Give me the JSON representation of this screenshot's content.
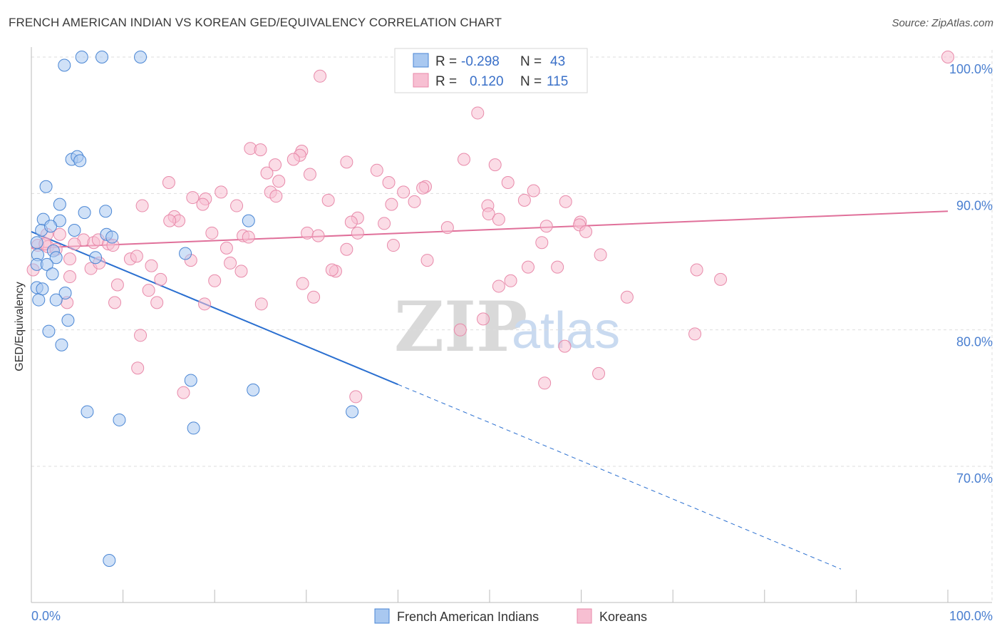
{
  "header": {
    "title": "FRENCH AMERICAN INDIAN VS KOREAN GED/EQUIVALENCY CORRELATION CHART",
    "source": "Source: ZipAtlas.com"
  },
  "watermark": {
    "zip": "ZIP",
    "atlas": "atlas"
  },
  "legend_box": {
    "rows": [
      {
        "r_label": "R =",
        "r_value": "-0.298",
        "n_label": "N =",
        "n_value": "43"
      },
      {
        "r_label": "R =",
        "r_value": "0.120",
        "n_label": "N =",
        "n_value": "115"
      }
    ]
  },
  "bottom_legend": {
    "items": [
      {
        "label": "French American Indians"
      },
      {
        "label": "Koreans"
      }
    ]
  },
  "colors": {
    "blue_fill": "#a9c8f0",
    "blue_stroke": "#4a86d4",
    "blue_line": "#2a6fd0",
    "pink_fill": "#f7bfd2",
    "pink_stroke": "#e88aaa",
    "pink_line": "#e0709a",
    "grid": "#dddddd",
    "tick_text": "#4a7fd0"
  },
  "chart_data": {
    "type": "scatter",
    "title": "FRENCH AMERICAN INDIAN VS KOREAN GED/EQUIVALENCY CORRELATION CHART",
    "xlabel": "",
    "ylabel": "GED/Equivalency",
    "xlim": [
      0,
      105
    ],
    "ylim": [
      60.2,
      101.5
    ],
    "x_tick_labels": [
      {
        "value": 0,
        "label": "0.0%"
      },
      {
        "value": 100,
        "label": "100.0%"
      }
    ],
    "y_tick_labels": [
      {
        "value": 100,
        "label": "100.0%"
      },
      {
        "value": 90,
        "label": "90.0%"
      },
      {
        "value": 80,
        "label": "80.0%"
      },
      {
        "value": 70,
        "label": "70.0%"
      }
    ],
    "grid": true,
    "series": [
      {
        "name": "French American Indians",
        "r": -0.298,
        "n": 43,
        "trend": {
          "x0": 0,
          "y0": 87.2,
          "x1": 100,
          "y1": 59.2,
          "solid_until_x": 40
        },
        "points": [
          [
            3.6,
            99.4
          ],
          [
            5.5,
            100
          ],
          [
            7.7,
            100
          ],
          [
            11.9,
            100
          ],
          [
            4.4,
            92.5
          ],
          [
            5.0,
            92.7
          ],
          [
            5.3,
            92.4
          ],
          [
            1.6,
            90.5
          ],
          [
            3.1,
            89.2
          ],
          [
            5.8,
            88.6
          ],
          [
            8.1,
            88.7
          ],
          [
            1.3,
            88.1
          ],
          [
            3.1,
            88.0
          ],
          [
            1.1,
            87.3
          ],
          [
            2.1,
            87.6
          ],
          [
            4.7,
            87.3
          ],
          [
            8.2,
            87.0
          ],
          [
            8.8,
            86.8
          ],
          [
            0.6,
            86.4
          ],
          [
            2.4,
            85.8
          ],
          [
            0.7,
            85.5
          ],
          [
            2.7,
            85.3
          ],
          [
            7.0,
            85.3
          ],
          [
            0.6,
            84.8
          ],
          [
            1.7,
            84.8
          ],
          [
            2.3,
            84.1
          ],
          [
            16.8,
            85.6
          ],
          [
            23.7,
            88.0
          ],
          [
            0.6,
            83.1
          ],
          [
            1.2,
            83.0
          ],
          [
            3.7,
            82.7
          ],
          [
            0.8,
            82.2
          ],
          [
            2.7,
            82.2
          ],
          [
            4.0,
            80.7
          ],
          [
            1.9,
            79.9
          ],
          [
            3.3,
            78.9
          ],
          [
            17.4,
            76.3
          ],
          [
            24.2,
            75.6
          ],
          [
            6.1,
            74.0
          ],
          [
            9.6,
            73.4
          ],
          [
            35.0,
            74.0
          ],
          [
            17.7,
            72.8
          ],
          [
            8.5,
            63.1
          ]
        ]
      },
      {
        "name": "Koreans",
        "r": 0.12,
        "n": 115,
        "trend": {
          "x0": 0,
          "y0": 86.0,
          "x1": 100,
          "y1": 88.7
        },
        "points": [
          [
            41.0,
            100
          ],
          [
            100,
            100
          ],
          [
            31.5,
            98.6
          ],
          [
            48.7,
            95.9
          ],
          [
            23.9,
            93.3
          ],
          [
            25.0,
            93.2
          ],
          [
            29.5,
            93.1
          ],
          [
            29.3,
            92.8
          ],
          [
            28.6,
            92.5
          ],
          [
            34.4,
            92.3
          ],
          [
            26.6,
            92.1
          ],
          [
            47.2,
            92.5
          ],
          [
            50.6,
            92.1
          ],
          [
            25.7,
            91.5
          ],
          [
            30.4,
            91.4
          ],
          [
            37.7,
            91.7
          ],
          [
            39.0,
            90.8
          ],
          [
            15.0,
            90.8
          ],
          [
            27.0,
            90.9
          ],
          [
            43.0,
            90.5
          ],
          [
            42.7,
            90.4
          ],
          [
            40.6,
            90.1
          ],
          [
            26.1,
            90.1
          ],
          [
            20.7,
            90.1
          ],
          [
            52.0,
            90.8
          ],
          [
            54.8,
            90.2
          ],
          [
            17.6,
            89.7
          ],
          [
            26.7,
            89.8
          ],
          [
            19.0,
            89.6
          ],
          [
            32.4,
            89.5
          ],
          [
            41.8,
            89.4
          ],
          [
            58.3,
            89.4
          ],
          [
            49.8,
            89.1
          ],
          [
            12.1,
            89.1
          ],
          [
            18.7,
            89.2
          ],
          [
            22.4,
            89.1
          ],
          [
            39.3,
            89.2
          ],
          [
            53.8,
            89.5
          ],
          [
            15.6,
            88.3
          ],
          [
            16.1,
            88.0
          ],
          [
            15.1,
            88.0
          ],
          [
            35.6,
            88.2
          ],
          [
            34.9,
            87.9
          ],
          [
            38.5,
            87.8
          ],
          [
            49.9,
            88.5
          ],
          [
            51.0,
            88.1
          ],
          [
            59.9,
            87.9
          ],
          [
            56.2,
            87.6
          ],
          [
            59.8,
            87.7
          ],
          [
            45.4,
            87.5
          ],
          [
            30.1,
            87.1
          ],
          [
            35.6,
            87.1
          ],
          [
            60.5,
            87.2
          ],
          [
            19.7,
            87.1
          ],
          [
            31.3,
            86.9
          ],
          [
            23.1,
            86.9
          ],
          [
            23.7,
            86.8
          ],
          [
            1.7,
            87.0
          ],
          [
            3.1,
            87.0
          ],
          [
            1.8,
            86.1
          ],
          [
            5.7,
            86.6
          ],
          [
            6.8,
            86.4
          ],
          [
            7.3,
            86.6
          ],
          [
            8.4,
            86.3
          ],
          [
            8.9,
            86.2
          ],
          [
            4.7,
            86.3
          ],
          [
            0.7,
            86.2
          ],
          [
            1.5,
            86.3
          ],
          [
            2.7,
            85.9
          ],
          [
            21.3,
            86.0
          ],
          [
            34.4,
            85.9
          ],
          [
            39.5,
            86.2
          ],
          [
            55.7,
            86.4
          ],
          [
            62.1,
            85.5
          ],
          [
            10.8,
            85.2
          ],
          [
            11.5,
            85.4
          ],
          [
            4.2,
            85.2
          ],
          [
            17.4,
            85.1
          ],
          [
            21.7,
            84.9
          ],
          [
            33.2,
            84.3
          ],
          [
            32.8,
            84.4
          ],
          [
            43.2,
            85.1
          ],
          [
            54.2,
            84.6
          ],
          [
            57.4,
            84.6
          ],
          [
            13.1,
            84.7
          ],
          [
            6.5,
            84.5
          ],
          [
            7.4,
            84.9
          ],
          [
            22.9,
            84.3
          ],
          [
            0.2,
            84.4
          ],
          [
            4.2,
            83.9
          ],
          [
            14.1,
            83.7
          ],
          [
            20.0,
            83.6
          ],
          [
            29.6,
            83.4
          ],
          [
            52.3,
            83.6
          ],
          [
            9.4,
            83.3
          ],
          [
            51.0,
            83.2
          ],
          [
            72.6,
            84.4
          ],
          [
            75.2,
            83.7
          ],
          [
            12.8,
            82.9
          ],
          [
            30.8,
            82.4
          ],
          [
            65.0,
            82.4
          ],
          [
            13.7,
            82.0
          ],
          [
            18.9,
            81.9
          ],
          [
            25.1,
            81.9
          ],
          [
            9.1,
            82.0
          ],
          [
            3.9,
            82.0
          ],
          [
            49.3,
            80.8
          ],
          [
            46.8,
            80.0
          ],
          [
            11.9,
            79.6
          ],
          [
            72.4,
            79.7
          ],
          [
            58.2,
            78.8
          ],
          [
            11.6,
            77.2
          ],
          [
            61.9,
            76.8
          ],
          [
            56.0,
            76.1
          ],
          [
            16.6,
            75.4
          ],
          [
            35.4,
            75.1
          ]
        ]
      }
    ]
  }
}
